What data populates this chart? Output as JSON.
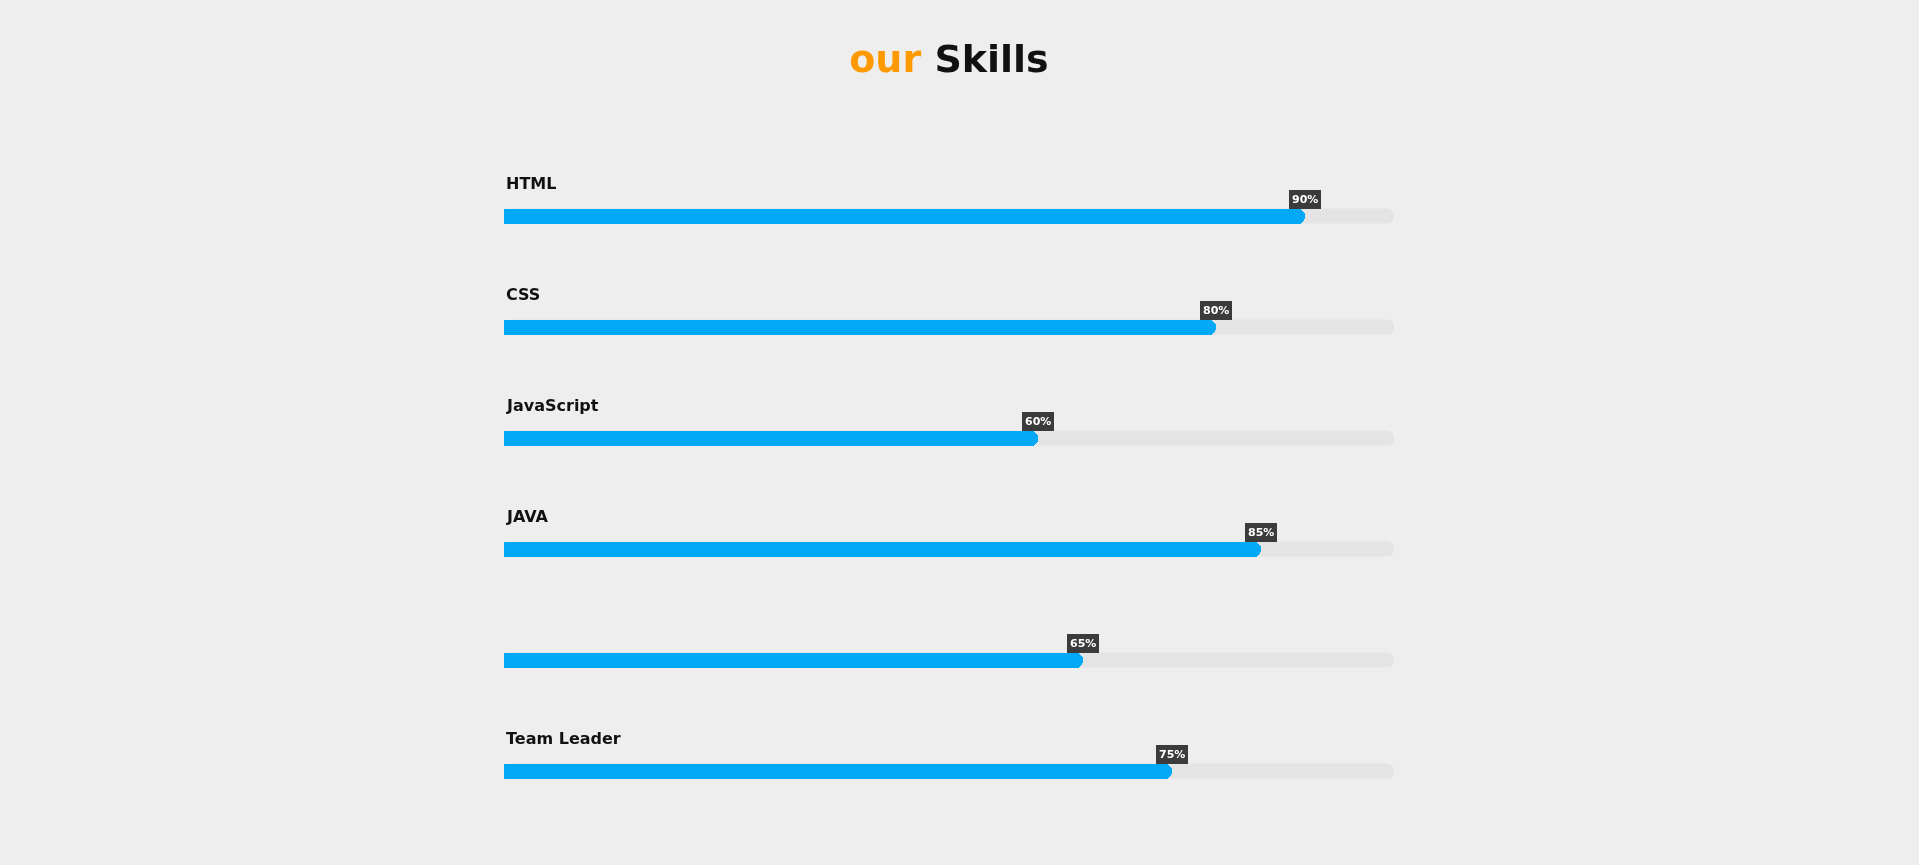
{
  "chart_data": {
    "type": "bar",
    "orientation": "horizontal",
    "title": "our Skills",
    "categories": [
      "HTML",
      "CSS",
      "JavaScript",
      "JAVA",
      null,
      "Team Leader"
    ],
    "values": [
      90,
      80,
      60,
      85,
      65,
      75
    ],
    "value_labels": [
      "90%",
      "80%",
      "60%",
      "85%",
      "65%",
      "75%"
    ],
    "color": "#03a9f4",
    "xlim": [
      0,
      100
    ],
    "tick_labels": false
  }
}
